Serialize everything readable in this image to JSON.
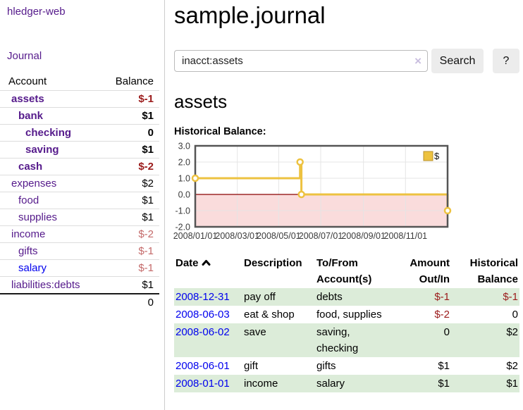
{
  "colors": {
    "link_purple": "#551a8b",
    "link_blue": "#0000ee",
    "negative_strong": "#9b1b1b",
    "negative_soft": "#c46a6a",
    "row_green": "#dcecd9",
    "chart_line_gold": "#edc240",
    "chart_negative_fill": "#fadcdc",
    "chart_zero_line": "#8b0000"
  },
  "sidebar": {
    "brand": "hledger-web",
    "journal_link": "Journal",
    "accounts": {
      "headers": {
        "account": "Account",
        "balance": "Balance"
      },
      "rows": [
        {
          "name": "assets",
          "balance": "$-1"
        },
        {
          "name": "bank",
          "balance": "$1"
        },
        {
          "name": "checking",
          "balance": "0"
        },
        {
          "name": "saving",
          "balance": "$1"
        },
        {
          "name": "cash",
          "balance": "$-2"
        },
        {
          "name": "expenses",
          "balance": "$2"
        },
        {
          "name": "food",
          "balance": "$1"
        },
        {
          "name": "supplies",
          "balance": "$1"
        },
        {
          "name": "income",
          "balance": "$-2"
        },
        {
          "name": "gifts",
          "balance": "$-1"
        },
        {
          "name": "salary",
          "balance": "$-1"
        },
        {
          "name": "liabilities:debts",
          "balance": "$1"
        }
      ],
      "total": "0"
    }
  },
  "main": {
    "title": "sample.journal",
    "search": {
      "value": "inacct:assets",
      "clear_icon": "×",
      "button": "Search",
      "help_button": "?"
    },
    "account_heading": "assets",
    "chart_label": "Historical Balance:"
  },
  "chart_data": {
    "type": "line",
    "step": true,
    "title": "Historical Balance:",
    "legend": [
      {
        "label": "$",
        "color": "#edc240"
      }
    ],
    "legend_position": "top-right",
    "grid": true,
    "ylim": [
      -2,
      3
    ],
    "yticks": [
      3.0,
      2.0,
      1.0,
      0.0,
      -1.0,
      -2.0
    ],
    "xticks": [
      {
        "pos": 0.0,
        "label": "2008/01/01"
      },
      {
        "pos": 0.1667,
        "label": "2008/03/01"
      },
      {
        "pos": 0.3306,
        "label": "2008/05/01"
      },
      {
        "pos": 0.4973,
        "label": "2008/07/01"
      },
      {
        "pos": 0.6667,
        "label": "2008/09/01"
      },
      {
        "pos": 0.8333,
        "label": "2008/11/01"
      }
    ],
    "series": [
      {
        "name": "$",
        "color": "#edc240",
        "points": [
          {
            "x": "2008-01-01",
            "pos": 0.0,
            "y": 1
          },
          {
            "x": "2008-06-01",
            "pos": 0.4153,
            "y": 2
          },
          {
            "x": "2008-06-03",
            "pos": 0.4208,
            "y": 0
          },
          {
            "x": "2008-12-31",
            "pos": 1.0,
            "y": -1
          }
        ]
      }
    ],
    "negative_region_color": "#fadcdc",
    "zero_line_color": "#8b0000",
    "grid_color": "#e5e5e5",
    "border_color": "#555555",
    "tick_label_color": "#3a3a3a"
  },
  "register": {
    "headers": {
      "date": "Date",
      "description": "Description",
      "accounts": "To/From Account(s)",
      "amount": "Amount Out/In",
      "balance": "Historical Balance"
    },
    "rows": [
      {
        "date": "2008-12-31",
        "description": "pay off",
        "accounts": "debts",
        "amount": "$-1",
        "balance": "$-1"
      },
      {
        "date": "2008-06-03",
        "description": "eat & shop",
        "accounts": "food, supplies",
        "amount": "$-2",
        "balance": "0"
      },
      {
        "date": "2008-06-02",
        "description": "save",
        "accounts": "saving,\nchecking",
        "amount": "0",
        "balance": "$2"
      },
      {
        "date": "2008-06-01",
        "description": "gift",
        "accounts": "gifts",
        "amount": "$1",
        "balance": "$2"
      },
      {
        "date": "2008-01-01",
        "description": "income",
        "accounts": "salary",
        "amount": "$1",
        "balance": "$1"
      }
    ]
  }
}
